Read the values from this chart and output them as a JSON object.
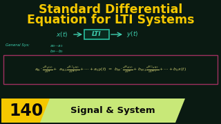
{
  "bg_color": "#0a1a12",
  "title_line1": "Standard Differential",
  "title_line2": "Equation for LTI Systems",
  "title_color": "#f5c800",
  "block_color": "#3ecfb0",
  "lti_box_color": "#2abfa0",
  "lti_bg": "#0a2a1e",
  "general_color": "#3ecfb0",
  "eq_color": "#c8c870",
  "eq_box_color": "#a03060",
  "eq_bg": "#0a1a12",
  "badge_yellow_color": "#f5c800",
  "badge_green_color": "#c8e878",
  "badge_num_color": "#0a0a0a",
  "badge_text_color": "#0a0a0a",
  "badge_number": "140",
  "badge_text": "Signal & System"
}
